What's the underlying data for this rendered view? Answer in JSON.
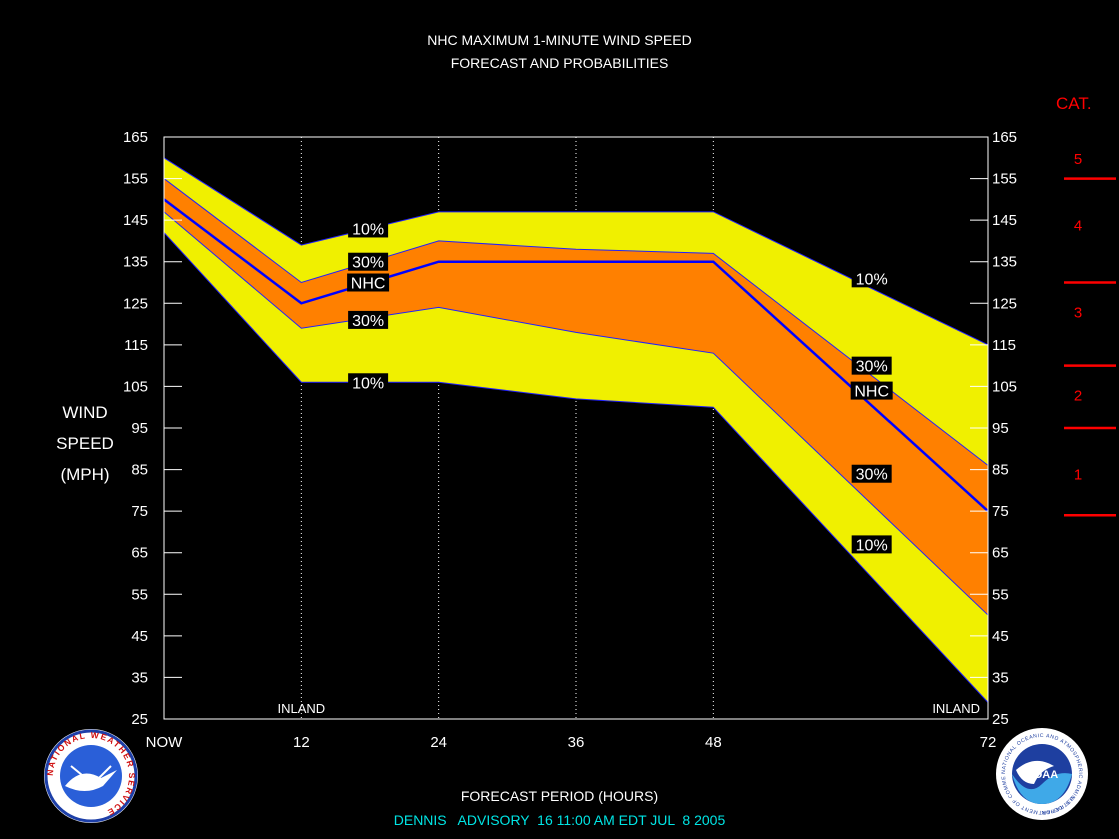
{
  "header": {
    "line1": "NHC MAXIMUM 1-MINUTE WIND SPEED",
    "line2": "FORECAST AND PROBABILITIES"
  },
  "axes": {
    "ylabel": [
      "WIND",
      "SPEED",
      "(MPH)"
    ],
    "xlabel": "FORECAST PERIOD (HOURS)"
  },
  "footer": {
    "advisory": "DENNIS   ADVISORY  16 11:00 AM EDT JUL  8 2005"
  },
  "category_scale": {
    "title": "CAT.",
    "labels": [
      {
        "cat": "5",
        "mid": 160
      },
      {
        "cat": "4",
        "mid": 144
      },
      {
        "cat": "3",
        "mid": 123
      },
      {
        "cat": "2",
        "mid": 103
      },
      {
        "cat": "1",
        "mid": 84
      }
    ],
    "boundaries": [
      155,
      130,
      110,
      95,
      74
    ],
    "color": "#ff0000"
  },
  "logos": {
    "left": "NATIONAL WEATHER SERVICE",
    "right_center": "NOAA",
    "right_ring": "NATIONAL OCEANIC AND ATMOSPHERIC ADMINISTRATION",
    "right_ring_bottom": "U.S. DEPARTMENT OF COMMERCE"
  },
  "chart_data": {
    "type": "area",
    "x_ticks": [
      0,
      12,
      24,
      36,
      48,
      72
    ],
    "x_tick_labels": [
      "NOW",
      "12",
      "24",
      "36",
      "48",
      "72"
    ],
    "xlim": [
      0,
      72
    ],
    "ylim": [
      25,
      165
    ],
    "y_ticks": [
      25,
      35,
      45,
      55,
      65,
      75,
      85,
      95,
      105,
      115,
      125,
      135,
      145,
      155,
      165
    ],
    "vertical_grid": [
      12,
      24,
      36,
      48
    ],
    "x": [
      0,
      12,
      24,
      36,
      48,
      72
    ],
    "series": [
      {
        "name": "10%",
        "role": "upper_outer",
        "values": [
          160,
          139,
          147,
          147,
          147,
          115
        ]
      },
      {
        "name": "30%",
        "role": "upper_inner",
        "values": [
          155,
          130,
          140,
          138,
          137,
          86
        ]
      },
      {
        "name": "NHC",
        "role": "forecast",
        "values": [
          150,
          125,
          135,
          135,
          135,
          75
        ]
      },
      {
        "name": "30%",
        "role": "lower_inner",
        "values": [
          147,
          119,
          124,
          118,
          113,
          50
        ]
      },
      {
        "name": "10%",
        "role": "lower_outer",
        "values": [
          142,
          106,
          106,
          102,
          100,
          29
        ]
      }
    ],
    "band_labels": [
      {
        "text": "10%",
        "x": 16,
        "y": 143
      },
      {
        "text": "30%",
        "x": 16,
        "y": 135
      },
      {
        "text": "NHC",
        "x": 16,
        "y": 130
      },
      {
        "text": "30%",
        "x": 16,
        "y": 121
      },
      {
        "text": "10%",
        "x": 16,
        "y": 106
      },
      {
        "text": "10%",
        "x": 60,
        "y": 131
      },
      {
        "text": "30%",
        "x": 60,
        "y": 110
      },
      {
        "text": "NHC",
        "x": 60,
        "y": 104
      },
      {
        "text": "30%",
        "x": 60,
        "y": 84
      },
      {
        "text": "10%",
        "x": 60,
        "y": 67
      }
    ],
    "annotations": [
      {
        "text": "INLAND",
        "x": 12
      },
      {
        "text": "INLAND",
        "x": 72
      }
    ],
    "colors": {
      "outer_band": "#f0f000",
      "inner_band": "#ff8000",
      "forecast_line": "#0000ff",
      "band_edge": "#2020ff",
      "background": "#000000",
      "text": "#ffffff"
    }
  }
}
